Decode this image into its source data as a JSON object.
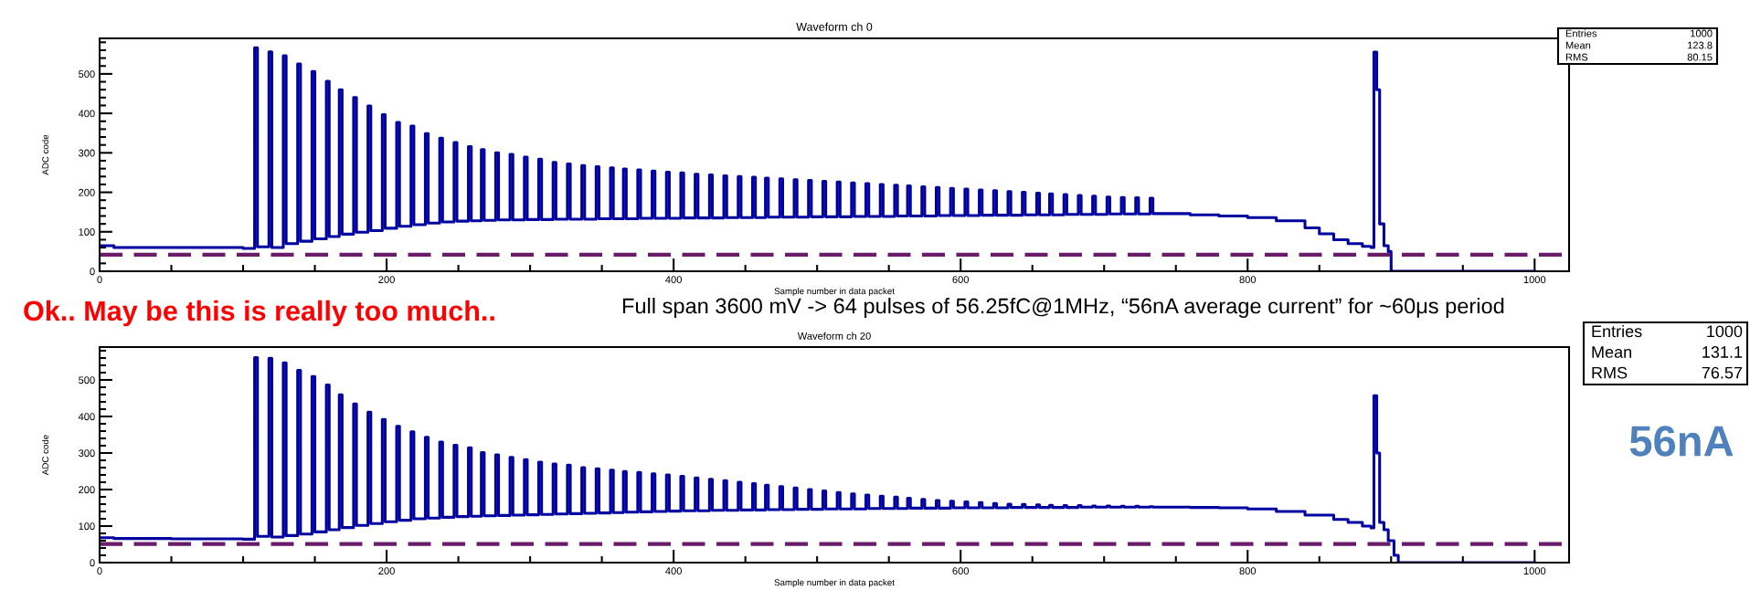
{
  "chart_data": [
    {
      "type": "step",
      "title": "Waveform ch 0",
      "xlabel": "Sample number in data packet",
      "ylabel": "ADC code",
      "color": "#0000a0",
      "x": [
        0,
        10,
        50,
        100,
        108,
        110,
        118,
        120,
        128,
        130,
        138,
        140,
        148,
        150,
        158,
        160,
        167,
        169,
        177,
        179,
        187,
        189,
        197,
        199,
        207,
        209,
        217,
        219,
        227,
        229,
        237,
        239,
        247,
        249,
        257,
        259,
        266,
        268,
        276,
        278,
        286,
        288,
        296,
        298,
        306,
        308,
        316,
        318,
        326,
        328,
        336,
        338,
        346,
        348,
        356,
        358,
        365,
        367,
        375,
        377,
        385,
        387,
        395,
        397,
        405,
        407,
        415,
        417,
        425,
        427,
        435,
        437,
        445,
        447,
        455,
        457,
        464,
        466,
        474,
        476,
        484,
        486,
        494,
        496,
        504,
        506,
        514,
        516,
        524,
        526,
        534,
        536,
        544,
        546,
        554,
        556,
        563,
        565,
        573,
        575,
        583,
        585,
        593,
        595,
        603,
        605,
        613,
        615,
        623,
        625,
        633,
        635,
        643,
        645,
        653,
        655,
        662,
        664,
        672,
        674,
        682,
        684,
        692,
        694,
        702,
        704,
        712,
        714,
        722,
        724,
        732,
        734,
        740,
        760,
        780,
        800,
        820,
        840,
        850,
        860,
        870,
        880,
        886,
        888,
        890,
        892,
        895,
        898,
        900,
        1000
      ],
      "values": [
        65,
        60,
        60,
        58,
        566,
        62,
        556,
        60,
        546,
        70,
        525,
        76,
        506,
        82,
        481,
        88,
        460,
        94,
        440,
        99,
        419,
        103,
        397,
        109,
        377,
        114,
        368,
        118,
        349,
        122,
        337,
        125,
        326,
        127,
        316,
        128,
        308,
        129,
        300,
        130,
        296,
        130,
        289,
        131,
        284,
        131,
        276,
        132,
        272,
        132,
        268,
        132,
        265,
        133,
        262,
        133,
        259,
        133,
        257,
        134,
        254,
        134,
        251,
        134,
        249,
        135,
        246,
        135,
        244,
        135,
        242,
        136,
        240,
        136,
        238,
        136,
        236,
        137,
        234,
        137,
        232,
        137,
        230,
        138,
        228,
        138,
        226,
        138,
        224,
        139,
        222,
        139,
        220,
        139,
        218,
        140,
        216,
        140,
        214,
        140,
        212,
        141,
        210,
        141,
        208,
        141,
        206,
        142,
        204,
        142,
        202,
        142,
        200,
        143,
        198,
        143,
        196,
        143,
        194,
        144,
        192,
        144,
        190,
        144,
        188,
        145,
        187,
        145,
        186,
        145,
        185,
        146,
        146,
        143,
        140,
        136,
        128,
        110,
        95,
        80,
        70,
        63,
        60,
        555,
        460,
        120,
        65,
        50,
        0,
        0
      ],
      "xlim": [
        0,
        1024
      ],
      "ylim": [
        0,
        590
      ],
      "xticks": [
        0,
        200,
        400,
        600,
        800,
        1000
      ],
      "yticks": [
        0,
        100,
        200,
        300,
        400,
        500
      ],
      "grid": false,
      "ref_lines": [
        {
          "axis": "y",
          "value": 42,
          "color": "#6a1b6a",
          "line_style": "dashed"
        }
      ],
      "annotations": [
        "Entries",
        "1000",
        "Mean",
        "123.8",
        "RMS",
        "80.15"
      ]
    },
    {
      "type": "step",
      "title": "Waveform ch 20",
      "xlabel": "Sample number in data packet",
      "ylabel": "ADC code",
      "color": "#0000a0",
      "x": [
        0,
        10,
        50,
        100,
        108,
        110,
        118,
        120,
        128,
        130,
        138,
        140,
        148,
        150,
        158,
        160,
        167,
        169,
        177,
        179,
        187,
        189,
        197,
        199,
        207,
        209,
        217,
        219,
        227,
        229,
        237,
        239,
        247,
        249,
        257,
        259,
        266,
        268,
        276,
        278,
        286,
        288,
        296,
        298,
        306,
        308,
        316,
        318,
        326,
        328,
        336,
        338,
        346,
        348,
        356,
        358,
        365,
        367,
        375,
        377,
        385,
        387,
        395,
        397,
        405,
        407,
        415,
        417,
        425,
        427,
        435,
        437,
        445,
        447,
        455,
        457,
        464,
        466,
        474,
        476,
        484,
        486,
        494,
        496,
        504,
        506,
        514,
        516,
        524,
        526,
        534,
        536,
        544,
        546,
        554,
        556,
        563,
        565,
        573,
        575,
        583,
        585,
        593,
        595,
        603,
        605,
        613,
        615,
        623,
        625,
        633,
        635,
        643,
        645,
        653,
        655,
        662,
        664,
        672,
        674,
        682,
        684,
        692,
        694,
        702,
        704,
        712,
        714,
        722,
        724,
        732,
        734,
        740,
        760,
        780,
        800,
        820,
        840,
        860,
        870,
        880,
        886,
        888,
        890,
        892,
        895,
        898,
        902,
        905,
        1000
      ],
      "values": [
        68,
        66,
        65,
        64,
        561,
        72,
        559,
        70,
        547,
        74,
        526,
        78,
        509,
        84,
        486,
        90,
        459,
        96,
        434,
        102,
        412,
        107,
        392,
        112,
        373,
        116,
        358,
        120,
        343,
        122,
        330,
        124,
        321,
        126,
        314,
        127,
        301,
        128,
        295,
        129,
        288,
        130,
        282,
        131,
        275,
        132,
        270,
        133,
        267,
        134,
        260,
        135,
        257,
        136,
        253,
        137,
        249,
        138,
        247,
        139,
        243,
        140,
        240,
        141,
        236,
        142,
        232,
        142,
        228,
        143,
        224,
        143,
        220,
        144,
        216,
        144,
        212,
        145,
        208,
        145,
        204,
        146,
        200,
        146,
        196,
        147,
        192,
        147,
        188,
        147,
        185,
        148,
        182,
        148,
        179,
        148,
        176,
        149,
        173,
        149,
        170,
        149,
        168,
        150,
        166,
        150,
        164,
        150,
        162,
        150,
        160,
        151,
        159,
        151,
        158,
        151,
        157,
        151,
        156,
        151,
        156,
        152,
        155,
        152,
        155,
        152,
        154,
        152,
        154,
        152,
        153,
        152,
        152,
        151,
        150,
        147,
        140,
        130,
        118,
        110,
        100,
        95,
        457,
        300,
        110,
        90,
        60,
        20,
        0,
        0
      ],
      "xlim": [
        0,
        1024
      ],
      "ylim": [
        0,
        590
      ],
      "xticks": [
        0,
        200,
        400,
        600,
        800,
        1000
      ],
      "yticks": [
        0,
        100,
        200,
        300,
        400,
        500
      ],
      "grid": false,
      "ref_lines": [
        {
          "axis": "y",
          "value": 51,
          "color": "#6a1b6a",
          "line_style": "dashed"
        }
      ],
      "annotations": [
        "Entries",
        "1000",
        "Mean",
        "131.1",
        "RMS",
        "76.57",
        "Ok.. May be this is really too much..",
        "Full span 3600 mV -> 64 pulses of 56.25fC@1MHz, “56nA average current” for ~60μs period",
        "56nA"
      ]
    }
  ]
}
